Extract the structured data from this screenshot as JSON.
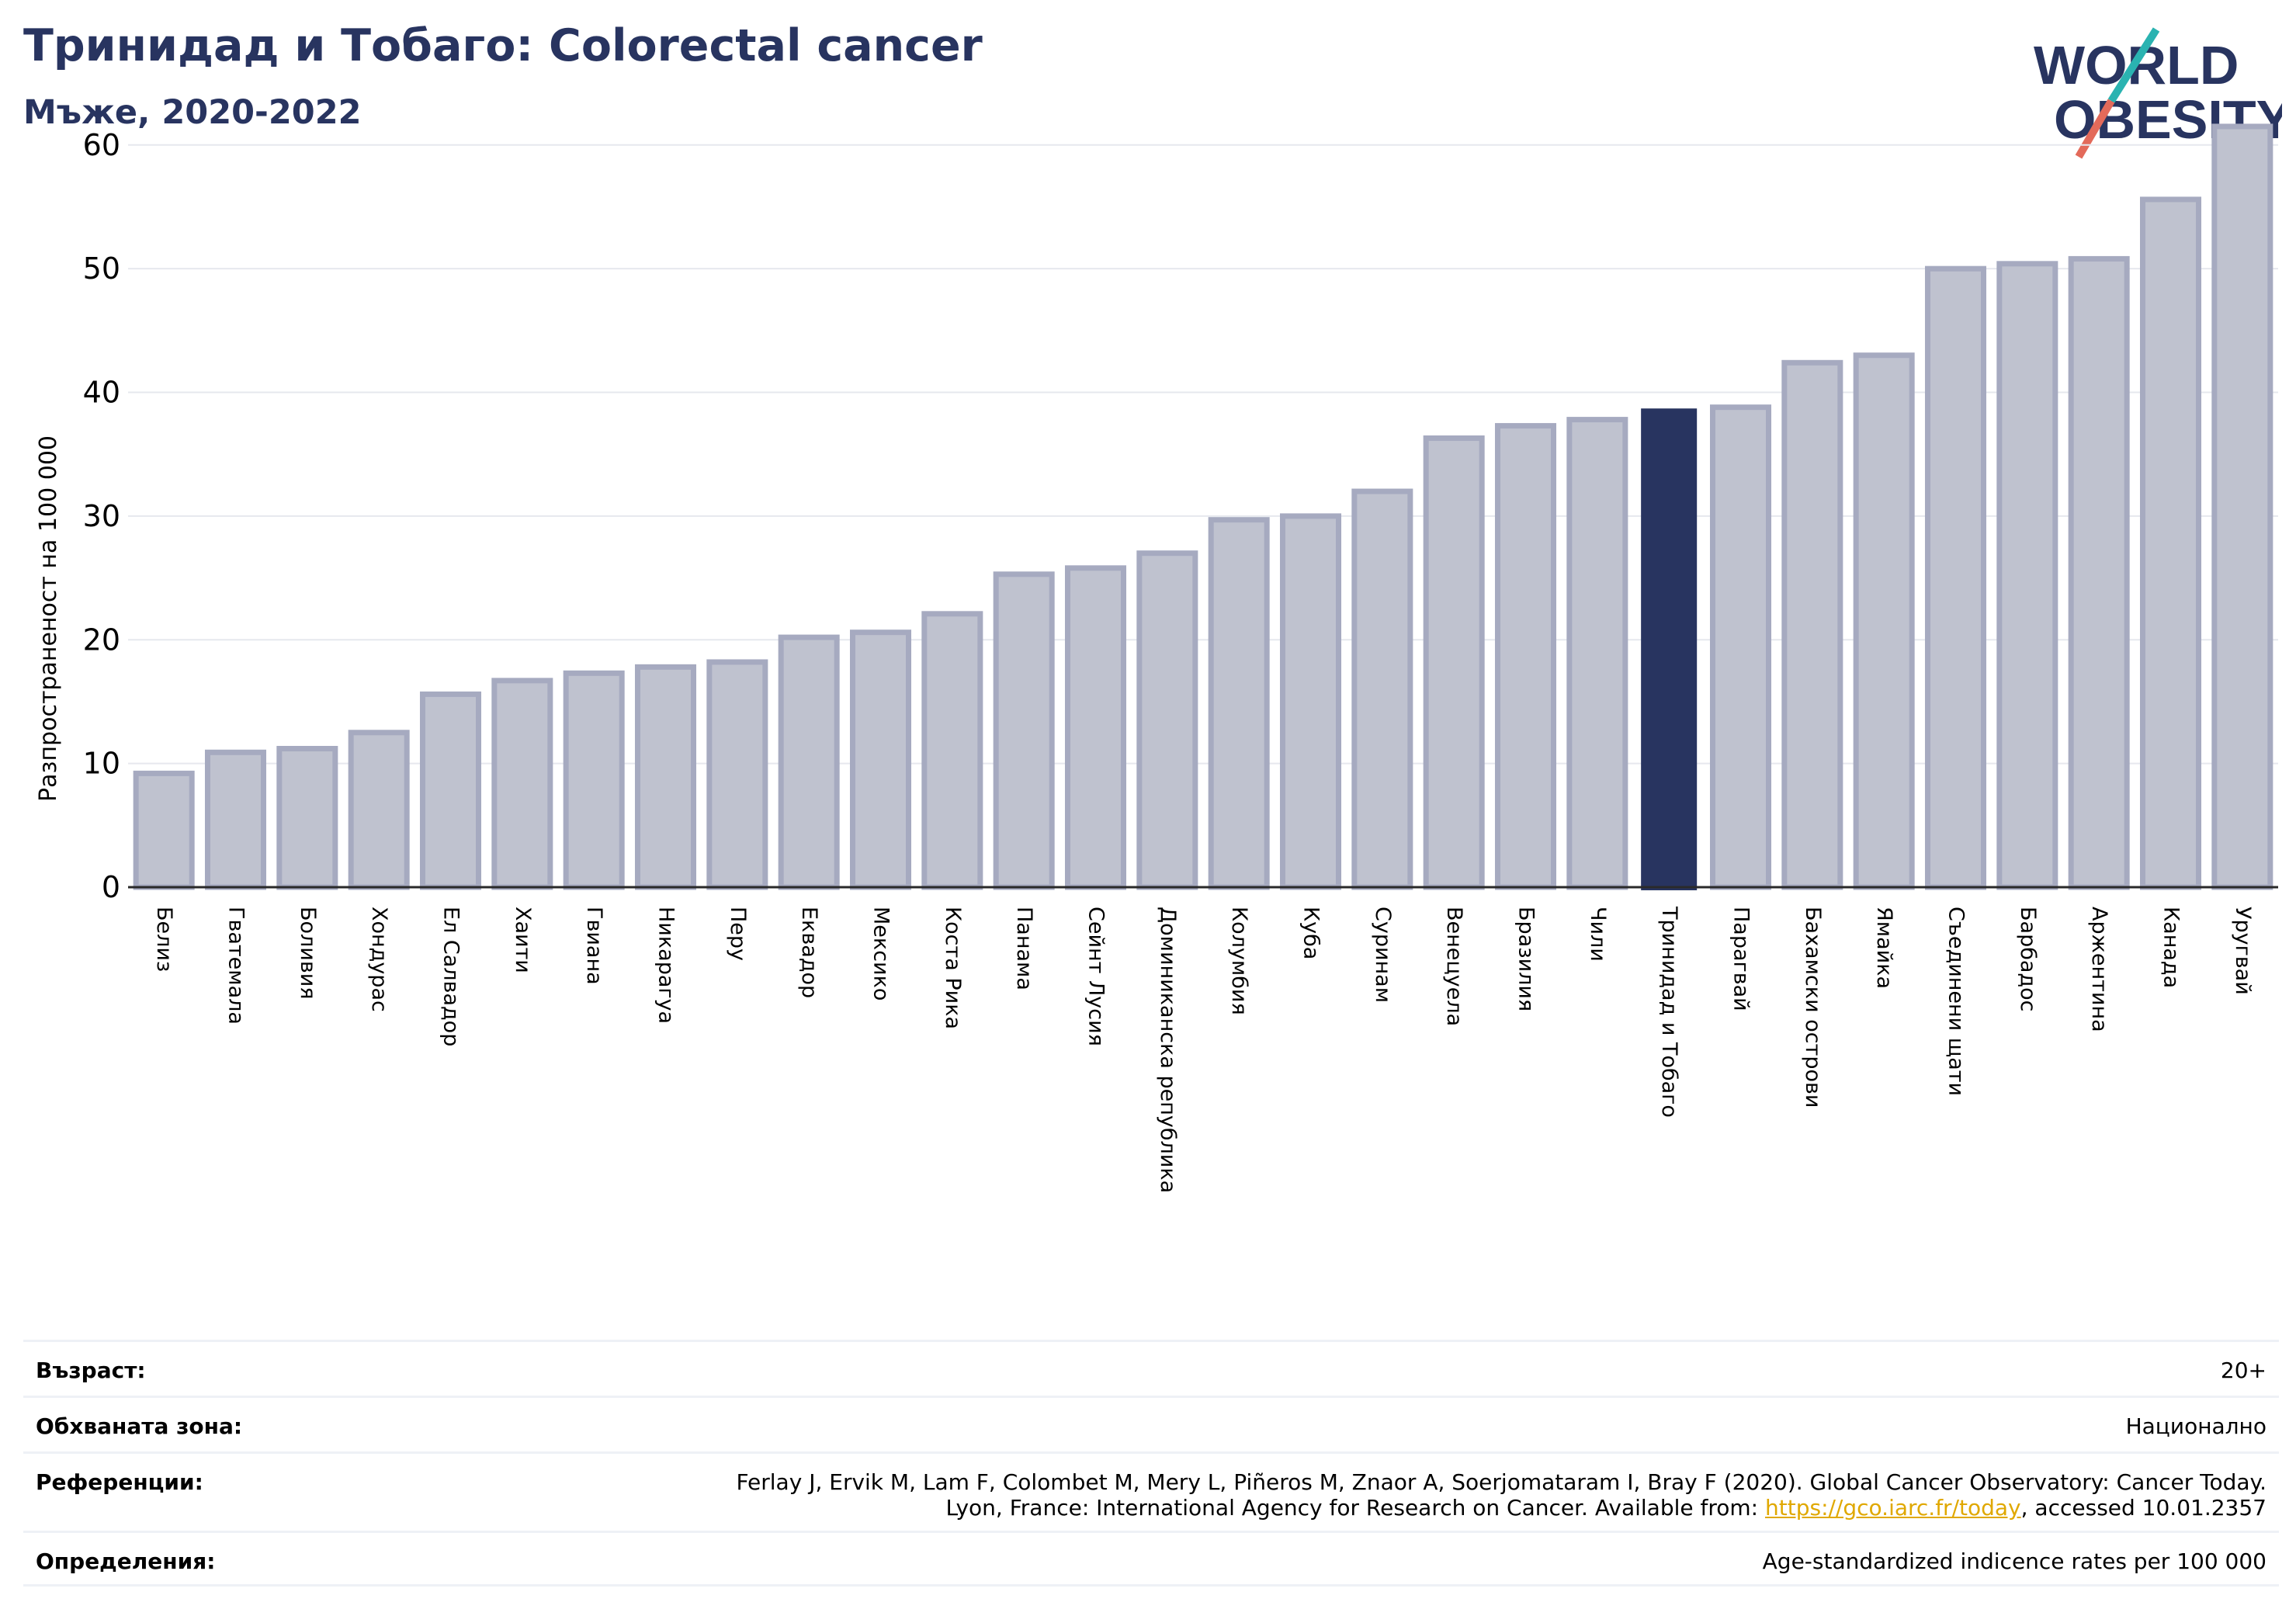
{
  "header": {
    "title": "Тринидад и Тобаго: Colorectal cancer",
    "subtitle": "Мъже, 2020-2022"
  },
  "logo": {
    "line1": "WORLD",
    "line2": "OBESITY",
    "colors": {
      "text": "#283460",
      "slash_top": "#2ab3b1",
      "slash_bottom": "#e36a5a"
    }
  },
  "chart_data": {
    "type": "bar",
    "ylabel": "Разпространеност  на 100 000",
    "xlabel": "",
    "ylim": [
      0,
      63
    ],
    "yticks": [
      0,
      10,
      20,
      30,
      40,
      50,
      60
    ],
    "grid": true,
    "highlight": "Тринидад и Тобаго",
    "colors": {
      "bar": "#bfc2cf",
      "bar_edge": "#a6aac0",
      "highlight": "#283460"
    },
    "categories": [
      "Белиз",
      "Гватемала",
      "Боливия",
      "Хондурас",
      "Ел Салвадор",
      "Хаити",
      "Гвиана",
      "Никарагуа",
      "Перу",
      "Еквадор",
      "Мексико",
      "Коста Рика",
      "Панама",
      "Сейнт Лусия",
      "Доминиканска република",
      "Колумбия",
      "Куба",
      "Суринам",
      "Венецуела",
      "Бразилия",
      "Чили",
      "Тринидад и Тобаго",
      "Парагвай",
      "Бахамски острови",
      "Ямайка",
      "Съединени щати",
      "Барбадос",
      "Аржентина",
      "Канада",
      "Уругвай"
    ],
    "values": [
      9.2,
      10.9,
      11.2,
      12.5,
      15.6,
      16.7,
      17.3,
      17.8,
      18.2,
      20.2,
      20.6,
      22.1,
      25.3,
      25.8,
      27.0,
      29.7,
      30.0,
      32.0,
      36.3,
      37.3,
      37.8,
      38.7,
      38.8,
      42.4,
      43.0,
      50.0,
      50.4,
      50.8,
      55.6,
      61.5
    ]
  },
  "info": {
    "age_label": "Възраст:",
    "age_value": "20+",
    "area_label": "Обхваната зона:",
    "area_value": "Национално",
    "refs_label": "Референции:",
    "refs_line1": "Ferlay J, Ervik M, Lam F, Colombet M, Mery L, Piñeros M, Znaor A, Soerjomataram I, Bray F (2020). Global Cancer Observatory: Cancer Today.",
    "refs_line2_before": "Lyon, France: International Agency for Research on Cancer. Available from: ",
    "refs_link": "https://gco.iarc.fr/today",
    "refs_line2_after": ", accessed 10.01.2357",
    "defs_label": "Определения:",
    "defs_value": "Age-standardized indicence rates per 100 000"
  }
}
